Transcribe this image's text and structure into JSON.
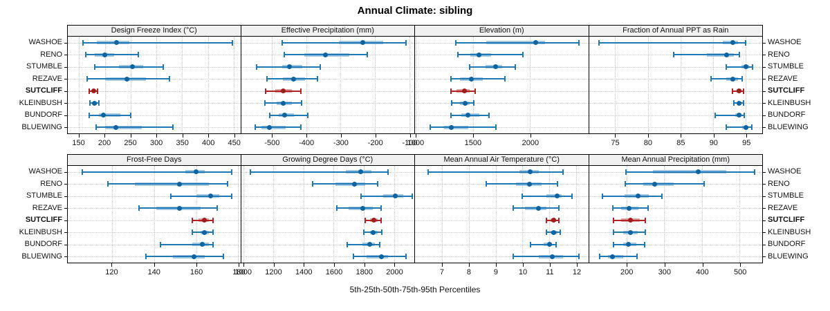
{
  "title": "Annual Climate: sibling",
  "caption": "5th-25th-50th-75th-95th Percentiles",
  "sites": [
    "WASHOE",
    "RENO",
    "STUMBLE",
    "REZAVE",
    "SUTCLIFF",
    "KLEINBUSH",
    "BUNDORF",
    "BLUEWING"
  ],
  "highlight_site": "SUTCLIFF",
  "colors": {
    "series": "#1f77b4",
    "series_dot": "#0f649f",
    "series_band": "#a3c8e3",
    "highlight": "#b22222",
    "highlight_dot": "#a01d1d",
    "highlight_band": "#dca49e",
    "grid": "#c9c9c9",
    "header_bg": "#f0f0f0",
    "frame": "#000000"
  },
  "chart_data": {
    "type": "scatter",
    "variant": "percentile-interval-dotplot",
    "percentile_labels": [
      "5th",
      "25th",
      "50th",
      "75th",
      "95th"
    ],
    "grid": "dotted",
    "rows_of_panels": 2,
    "panels": [
      {
        "title": "Design Freeze Index (°C)",
        "xlim": [
          128,
          463
        ],
        "ticks": [
          150,
          200,
          250,
          300,
          350,
          400,
          450
        ],
        "values": [
          [
            158,
            185,
            222,
            248,
            447
          ],
          [
            163,
            180,
            200,
            218,
            265
          ],
          [
            180,
            228,
            253,
            275,
            313
          ],
          [
            165,
            200,
            243,
            280,
            325
          ],
          [
            170,
            175,
            179,
            182,
            186
          ],
          [
            171,
            176,
            180,
            184,
            188
          ],
          [
            170,
            188,
            197,
            230,
            250
          ],
          [
            183,
            200,
            221,
            272,
            332
          ]
        ]
      },
      {
        "title": "Effective Precipitation (mm)",
        "xlim": [
          -590,
          -85
        ],
        "ticks": [
          -500,
          -400,
          -300,
          -200,
          -100
        ],
        "values": [
          [
            -470,
            -305,
            -235,
            -175,
            -110
          ],
          [
            -465,
            -405,
            -345,
            -275,
            -222
          ],
          [
            -545,
            -470,
            -448,
            -412,
            -360
          ],
          [
            -515,
            -468,
            -437,
            -403,
            -368
          ],
          [
            -518,
            -490,
            -468,
            -442,
            -415
          ],
          [
            -520,
            -487,
            -467,
            -442,
            -414
          ],
          [
            -507,
            -480,
            -462,
            -436,
            -395
          ],
          [
            -548,
            -530,
            -508,
            -460,
            -415
          ]
        ]
      },
      {
        "title": "Elevation (m)",
        "xlim": [
          995,
          2510
        ],
        "ticks": [
          1000,
          1500,
          2000
        ],
        "values": [
          [
            1350,
            1620,
            2050,
            2130,
            2430
          ],
          [
            1370,
            1480,
            1555,
            1660,
            1940
          ],
          [
            1470,
            1610,
            1700,
            1760,
            1870
          ],
          [
            1310,
            1390,
            1490,
            1590,
            1780
          ],
          [
            1310,
            1360,
            1430,
            1470,
            1520
          ],
          [
            1315,
            1390,
            1435,
            1470,
            1510
          ],
          [
            1310,
            1400,
            1460,
            1560,
            1640
          ],
          [
            1130,
            1250,
            1310,
            1460,
            1700
          ]
        ]
      },
      {
        "title": "Fraction of Annual PPT as Rain",
        "xlim": [
          71,
          97.5
        ],
        "ticks": [
          75,
          80,
          85,
          90,
          95
        ],
        "values": [
          [
            72.5,
            91.5,
            93,
            93.8,
            95
          ],
          [
            84,
            89,
            92,
            93.2,
            94
          ],
          [
            92,
            94.3,
            95,
            95.5,
            96
          ],
          [
            89.7,
            92,
            93,
            93.8,
            94.4
          ],
          [
            93,
            93.6,
            94,
            94.3,
            94.6
          ],
          [
            93.2,
            93.7,
            94,
            94.3,
            94.6
          ],
          [
            90.3,
            93.4,
            94,
            94.3,
            94.7
          ],
          [
            92,
            94.4,
            95,
            95.4,
            95.9
          ]
        ]
      },
      {
        "title": "Frost-Free Days",
        "xlim": [
          99,
          181
        ],
        "ticks": [
          120,
          140,
          160,
          180
        ],
        "values": [
          [
            106,
            155,
            160,
            164,
            177
          ],
          [
            118,
            131,
            152,
            166,
            175
          ],
          [
            148,
            160,
            167,
            171,
            177
          ],
          [
            133,
            141,
            152,
            162,
            170
          ],
          [
            158,
            161,
            164,
            166,
            168
          ],
          [
            158,
            162,
            164,
            166,
            168
          ],
          [
            143,
            158,
            163,
            166,
            168
          ],
          [
            136,
            149,
            159,
            164,
            173
          ]
        ]
      },
      {
        "title": "Growing Degree Days (°C)",
        "xlim": [
          985,
          2135
        ],
        "ticks": [
          1000,
          1200,
          1400,
          1600,
          1800,
          2000
        ],
        "values": [
          [
            1045,
            1680,
            1780,
            1850,
            1960
          ],
          [
            1460,
            1610,
            1740,
            1810,
            1890
          ],
          [
            1780,
            1930,
            2010,
            2060,
            2120
          ],
          [
            1620,
            1700,
            1795,
            1860,
            1915
          ],
          [
            1810,
            1840,
            1865,
            1890,
            1915
          ],
          [
            1800,
            1840,
            1860,
            1890,
            1920
          ],
          [
            1690,
            1790,
            1840,
            1875,
            1905
          ],
          [
            1730,
            1820,
            1915,
            1960,
            2080
          ]
        ]
      },
      {
        "title": "Mean Annual Air Temperature (°C)",
        "xlim": [
          6.0,
          12.45
        ],
        "ticks": [
          7,
          8,
          9,
          10,
          11,
          12
        ],
        "values": [
          [
            6.5,
            9.9,
            10.3,
            10.6,
            11.5
          ],
          [
            8.65,
            9.75,
            10.25,
            10.7,
            11.3
          ],
          [
            10.0,
            10.9,
            11.3,
            11.45,
            11.85
          ],
          [
            9.65,
            10.1,
            10.6,
            10.9,
            11.35
          ],
          [
            10.9,
            11.05,
            11.15,
            11.25,
            11.35
          ],
          [
            10.9,
            11.05,
            11.15,
            11.3,
            11.4
          ],
          [
            10.3,
            10.8,
            11.0,
            11.1,
            11.25
          ],
          [
            9.65,
            10.6,
            11.1,
            11.5,
            12.1
          ]
        ]
      },
      {
        "title": "Mean Annual Precipitation (mm)",
        "xlim": [
          100,
          560
        ],
        "ticks": [
          200,
          300,
          400,
          500
        ],
        "values": [
          [
            198,
            270,
            390,
            465,
            540
          ],
          [
            196,
            245,
            275,
            325,
            405
          ],
          [
            135,
            195,
            230,
            258,
            293
          ],
          [
            163,
            185,
            207,
            232,
            257
          ],
          [
            165,
            185,
            210,
            235,
            250
          ],
          [
            165,
            190,
            210,
            230,
            250
          ],
          [
            165,
            190,
            205,
            225,
            248
          ],
          [
            128,
            150,
            163,
            190,
            227
          ]
        ]
      }
    ]
  }
}
